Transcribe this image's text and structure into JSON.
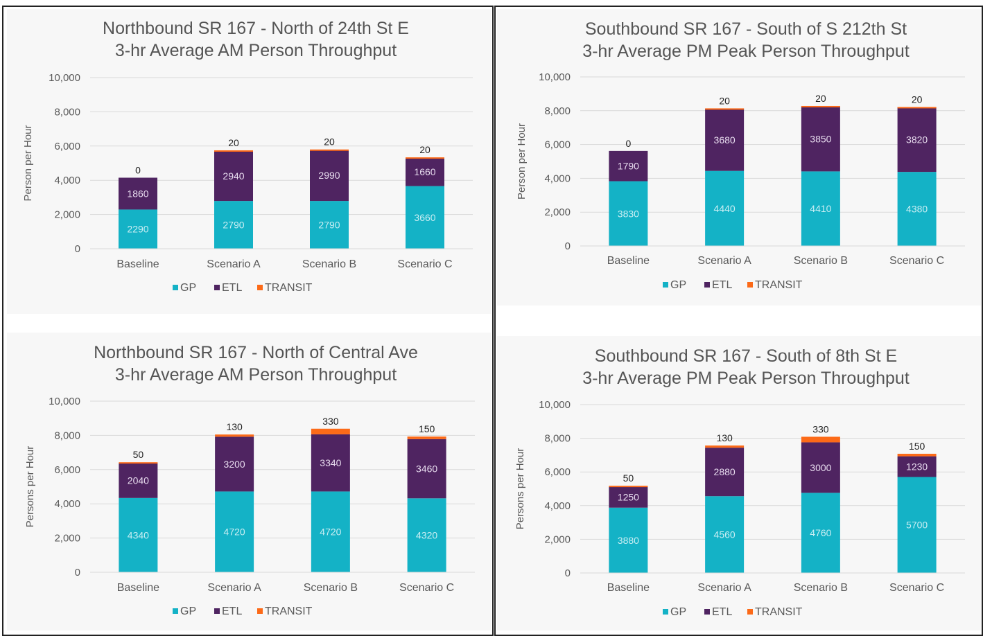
{
  "colors": {
    "GP": "#14b2c6",
    "ETL": "#4f2461",
    "TRANSIT": "#fc6a18"
  },
  "chart_data": [
    {
      "type": "bar",
      "stacked": true,
      "title": "Northbound SR 167 - North of 24th St E",
      "subtitle": "3-hr Average AM Person Throughput",
      "xlabel": "",
      "ylabel": "Person per Hour",
      "ylim": [
        0,
        10000
      ],
      "yticks": [
        "0",
        "2,000",
        "4,000",
        "6,000",
        "8,000",
        "10,000"
      ],
      "categories": [
        "Baseline",
        "Scenario A",
        "Scenario B",
        "Scenario C"
      ],
      "series": [
        {
          "name": "GP",
          "values": [
            2290,
            2790,
            2790,
            3660
          ]
        },
        {
          "name": "ETL",
          "values": [
            1860,
            2940,
            2990,
            1660
          ]
        },
        {
          "name": "TRANSIT",
          "values": [
            0,
            20,
            20,
            20
          ]
        }
      ],
      "grid": true,
      "legend": "bottom"
    },
    {
      "type": "bar",
      "stacked": true,
      "title": "Southbound SR 167 - South of S 212th St",
      "subtitle": "3-hr Average PM Peak Person Throughput",
      "xlabel": "",
      "ylabel": "Person per Hour",
      "ylim": [
        0,
        10000
      ],
      "yticks": [
        "0",
        "2,000",
        "4,000",
        "6,000",
        "8,000",
        "10,000"
      ],
      "categories": [
        "Baseline",
        "Scenario A",
        "Scenario B",
        "Scenario C"
      ],
      "series": [
        {
          "name": "GP",
          "values": [
            3830,
            4440,
            4410,
            4380
          ]
        },
        {
          "name": "ETL",
          "values": [
            1790,
            3680,
            3850,
            3820
          ]
        },
        {
          "name": "TRANSIT",
          "values": [
            0,
            20,
            20,
            20
          ]
        }
      ],
      "grid": true,
      "legend": "bottom"
    },
    {
      "type": "bar",
      "stacked": true,
      "title": "Northbound SR 167  - North of Central Ave",
      "subtitle": "3-hr Average AM Person Throughput",
      "xlabel": "",
      "ylabel": "Persons per Hour",
      "ylim": [
        0,
        10000
      ],
      "yticks": [
        "0",
        "2,000",
        "4,000",
        "6,000",
        "8,000",
        "10,000"
      ],
      "categories": [
        "Baseline",
        "Scenario A",
        "Scenario B",
        "Scenario C"
      ],
      "series": [
        {
          "name": "GP",
          "values": [
            4340,
            4720,
            4720,
            4320
          ]
        },
        {
          "name": "ETL",
          "values": [
            2040,
            3200,
            3340,
            3460
          ]
        },
        {
          "name": "TRANSIT",
          "values": [
            50,
            130,
            330,
            150
          ]
        }
      ],
      "grid": true,
      "legend": "bottom"
    },
    {
      "type": "bar",
      "stacked": true,
      "title": "Southbound SR 167 - South of 8th St E",
      "subtitle": "3-hr Average PM Peak Person Throughput",
      "xlabel": "",
      "ylabel": "Persons per Hour",
      "ylim": [
        0,
        10000
      ],
      "yticks": [
        "0",
        "2,000",
        "4,000",
        "6,000",
        "8,000",
        "10,000"
      ],
      "categories": [
        "Baseline",
        "Scenario A",
        "Scenario B",
        "Scenario C"
      ],
      "series": [
        {
          "name": "GP",
          "values": [
            3880,
            4560,
            4760,
            5700
          ]
        },
        {
          "name": "ETL",
          "values": [
            1250,
            2880,
            3000,
            1230
          ]
        },
        {
          "name": "TRANSIT",
          "values": [
            50,
            130,
            330,
            150
          ]
        }
      ],
      "grid": true,
      "legend": "bottom"
    }
  ]
}
